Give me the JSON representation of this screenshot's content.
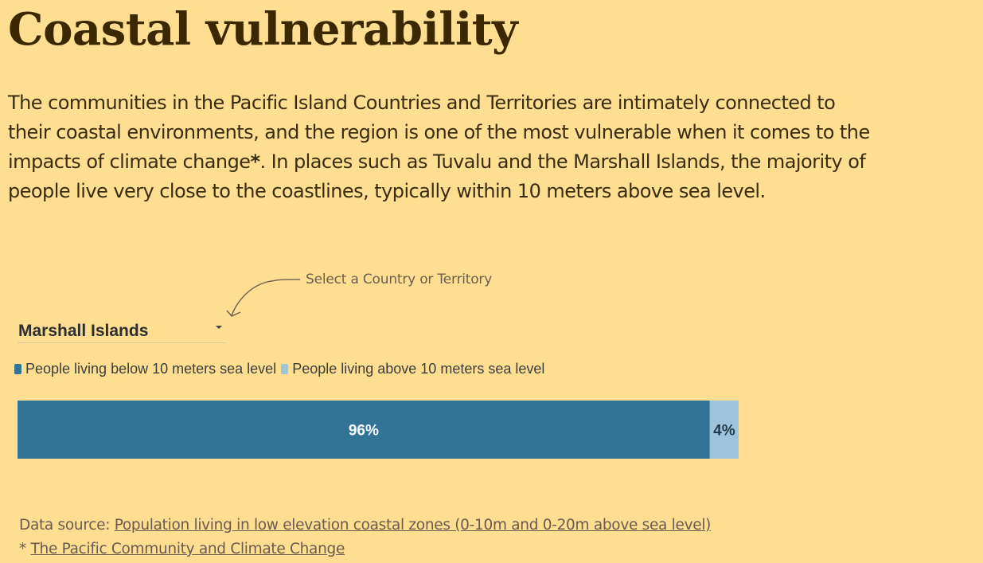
{
  "title": "Coastal vulnerability",
  "intro": {
    "line1": "The communities in the Pacific Island Countries and Territories are intimately connected to",
    "line2": "their coastal environments, and the region is one of the most vulnerable when it comes to the",
    "line3_pre": "impacts of climate change",
    "line3_star": "*",
    "line3_post": ". In places such as Tuvalu and the Marshall Islands, the majority of",
    "line4": "people live very close to the coastlines, typically within 10 meters above sea level."
  },
  "hint": "Select a Country or Territory",
  "selector": {
    "value": "Marshall Islands",
    "icon": "caret-down-icon"
  },
  "colors": {
    "background": "#FEDE91",
    "below": "#337496",
    "above": "#9DC4DA"
  },
  "chart_data": {
    "type": "bar",
    "orientation": "horizontal",
    "stacked": true,
    "categories": [
      "Marshall Islands"
    ],
    "series": [
      {
        "name": "People living below 10 meters sea level",
        "values": [
          96
        ],
        "label": "96%",
        "color": "#337496"
      },
      {
        "name": "People living above 10 meters sea level",
        "values": [
          4
        ],
        "label": "4%",
        "color": "#9DC4DA"
      }
    ],
    "xlim": [
      0,
      100
    ],
    "legend": "top-left",
    "grid": false
  },
  "footer": {
    "source_label": "Data source: ",
    "source_link": "Population living in low elevation coastal zones (0-10m and 0-20m above sea level)",
    "note_star": "* ",
    "note_link": "The Pacific Community and Climate Change"
  }
}
